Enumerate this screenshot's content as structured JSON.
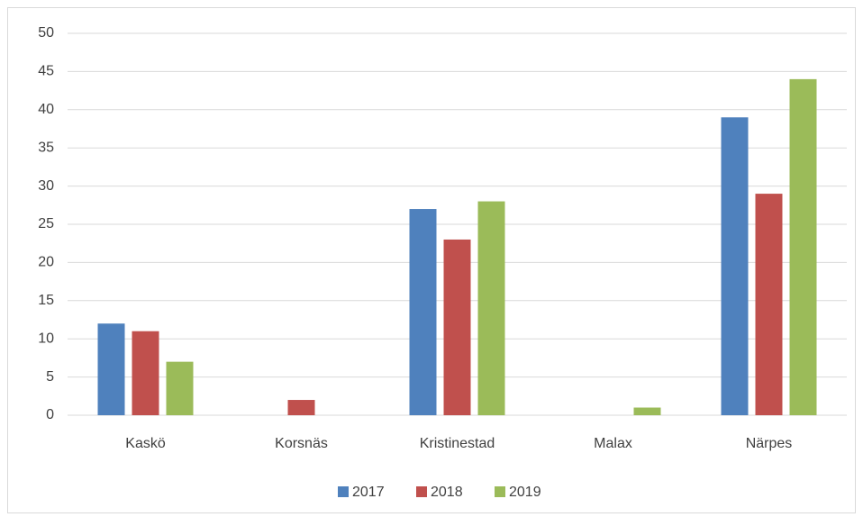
{
  "chart_data": {
    "type": "bar",
    "categories": [
      "Kaskö",
      "Korsnäs",
      "Kristinestad",
      "Malax",
      "Närpes"
    ],
    "series": [
      {
        "name": "2017",
        "color": "#4f81bd",
        "values": [
          12,
          0,
          27,
          0,
          39
        ]
      },
      {
        "name": "2018",
        "color": "#c0504d",
        "values": [
          11,
          2,
          23,
          0,
          29
        ]
      },
      {
        "name": "2019",
        "color": "#9bbb59",
        "values": [
          7,
          0,
          28,
          1,
          44
        ]
      }
    ],
    "ylim": [
      0,
      50
    ],
    "yticks": [
      0,
      5,
      10,
      15,
      20,
      25,
      30,
      35,
      40,
      45,
      50
    ],
    "grid": true,
    "legend": "bottom"
  }
}
